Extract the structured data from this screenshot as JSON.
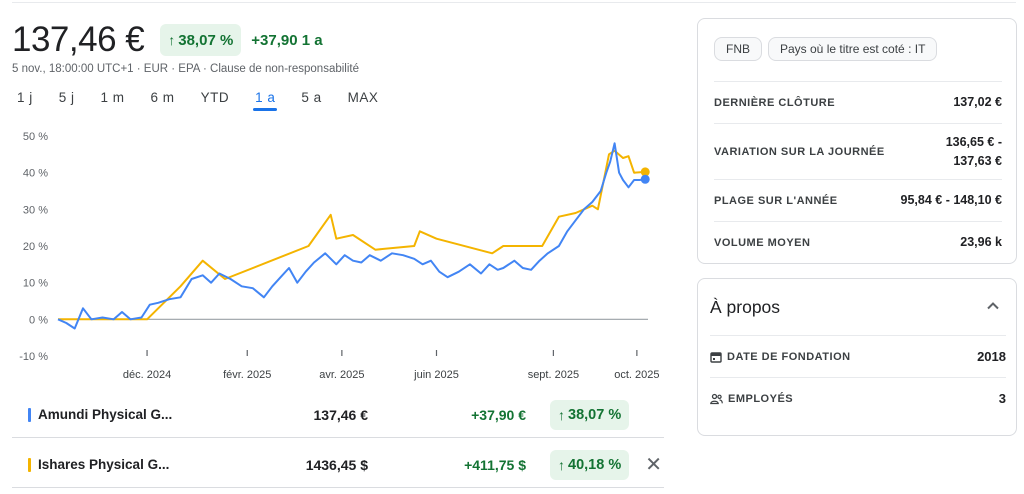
{
  "quote": {
    "price": "137,46 €",
    "change_pct": "38,07 %",
    "change_abs": "+37,90 1 a",
    "subline": "5 nov., 18:00:00 UTC+1 · EUR · EPA · Clause de non-responsabilité"
  },
  "ranges": [
    "1 j",
    "5 j",
    "1 m",
    "6 m",
    "YTD",
    "1 a",
    "5 a",
    "MAX"
  ],
  "active_range": "1 a",
  "chart_data": {
    "type": "line",
    "ylim": [
      -10,
      50
    ],
    "y_ticks": [
      "50 %",
      "40 %",
      "30 %",
      "20 %",
      "10 %",
      "0 %",
      "-10 %"
    ],
    "x_ticks": [
      "déc. 2024",
      "févr. 2025",
      "avr. 2025",
      "juin 2025",
      "sept. 2025",
      "oct. 2025"
    ],
    "series": [
      {
        "name": "Amundi Physical G...",
        "color": "#4285f4",
        "points": [
          [
            0,
            0
          ],
          [
            0.015,
            -1
          ],
          [
            0.03,
            -2.5
          ],
          [
            0.045,
            3
          ],
          [
            0.06,
            0
          ],
          [
            0.08,
            0.5
          ],
          [
            0.1,
            0
          ],
          [
            0.115,
            2
          ],
          [
            0.13,
            0
          ],
          [
            0.15,
            0.5
          ],
          [
            0.165,
            4
          ],
          [
            0.18,
            4.5
          ],
          [
            0.2,
            5.5
          ],
          [
            0.22,
            6
          ],
          [
            0.24,
            11
          ],
          [
            0.26,
            12
          ],
          [
            0.275,
            10
          ],
          [
            0.29,
            12.5
          ],
          [
            0.31,
            11
          ],
          [
            0.33,
            9
          ],
          [
            0.35,
            8.5
          ],
          [
            0.37,
            6
          ],
          [
            0.385,
            9
          ],
          [
            0.4,
            11.5
          ],
          [
            0.415,
            14
          ],
          [
            0.43,
            10
          ],
          [
            0.445,
            13
          ],
          [
            0.46,
            15.5
          ],
          [
            0.48,
            18
          ],
          [
            0.5,
            15
          ],
          [
            0.515,
            17.5
          ],
          [
            0.53,
            16
          ],
          [
            0.545,
            15.5
          ],
          [
            0.56,
            17.5
          ],
          [
            0.58,
            16
          ],
          [
            0.6,
            18
          ],
          [
            0.62,
            17.5
          ],
          [
            0.64,
            16.5
          ],
          [
            0.655,
            15
          ],
          [
            0.67,
            16
          ],
          [
            0.685,
            13
          ],
          [
            0.7,
            11.5
          ],
          [
            0.72,
            13
          ],
          [
            0.74,
            15
          ],
          [
            0.76,
            12.5
          ],
          [
            0.775,
            15
          ],
          [
            0.79,
            13.5
          ],
          [
            0.8,
            14
          ],
          [
            0.82,
            16
          ],
          [
            0.835,
            14
          ],
          [
            0.85,
            13.5
          ],
          [
            0.865,
            16
          ],
          [
            0.88,
            18
          ],
          [
            0.9,
            20
          ],
          [
            0.915,
            24
          ],
          [
            0.93,
            27
          ],
          [
            0.945,
            30
          ],
          [
            0.96,
            32
          ],
          [
            0.975,
            35
          ],
          [
            0.985,
            40
          ],
          [
            0.992,
            43
          ],
          [
            1.0,
            48
          ],
          [
            1.008,
            40
          ],
          [
            1.015,
            38
          ],
          [
            1.025,
            36
          ],
          [
            1.035,
            38
          ],
          [
            1.045,
            38
          ],
          [
            1.055,
            38.2
          ]
        ]
      },
      {
        "name": "Ishares Physical G...",
        "color": "#f4b400",
        "points": [
          [
            0,
            0
          ],
          [
            0.1,
            0
          ],
          [
            0.16,
            0
          ],
          [
            0.22,
            9
          ],
          [
            0.26,
            16
          ],
          [
            0.3,
            11
          ],
          [
            0.45,
            20
          ],
          [
            0.49,
            28.5
          ],
          [
            0.5,
            22
          ],
          [
            0.53,
            23
          ],
          [
            0.57,
            19
          ],
          [
            0.64,
            20
          ],
          [
            0.65,
            24
          ],
          [
            0.68,
            22
          ],
          [
            0.78,
            18
          ],
          [
            0.8,
            20
          ],
          [
            0.87,
            20
          ],
          [
            0.9,
            28
          ],
          [
            0.93,
            29
          ],
          [
            0.96,
            31
          ],
          [
            0.97,
            30
          ],
          [
            0.99,
            45
          ],
          [
            1.0,
            46
          ],
          [
            1.015,
            44
          ],
          [
            1.025,
            44.5
          ],
          [
            1.035,
            40
          ],
          [
            1.055,
            40.2
          ]
        ]
      }
    ]
  },
  "compare": [
    {
      "name": "Amundi Physical G...",
      "price": "137,46 €",
      "change_abs": "+37,90 €",
      "change_pct": "38,07 %",
      "color": "#4285f4"
    },
    {
      "name": "Ishares Physical G...",
      "price": "1436,45 $",
      "change_abs": "+411,75 $",
      "change_pct": "40,18 %",
      "color": "#f4b400"
    }
  ],
  "chips": [
    "FNB",
    "Pays où le titre est coté : IT"
  ],
  "stats": [
    {
      "label": "DERNIÈRE CLÔTURE",
      "value": "137,02 €"
    },
    {
      "label": "VARIATION SUR LA JOURNÉE",
      "value": "136,65 € -\n137,63 €"
    },
    {
      "label": "PLAGE SUR L'ANNÉE",
      "value": "95,84 € - 148,10 €"
    },
    {
      "label": "VOLUME MOYEN",
      "value": "23,96 k"
    }
  ],
  "about": {
    "title": "À propos",
    "rows": [
      {
        "label": "DATE DE FONDATION",
        "value": "2018",
        "icon": "calendar-icon"
      },
      {
        "label": "EMPLOYÉS",
        "value": "3",
        "icon": "people-icon"
      }
    ]
  },
  "colors": {
    "positive": "#137333",
    "positive_bg": "#e6f4ea",
    "accent": "#1a73e8"
  }
}
